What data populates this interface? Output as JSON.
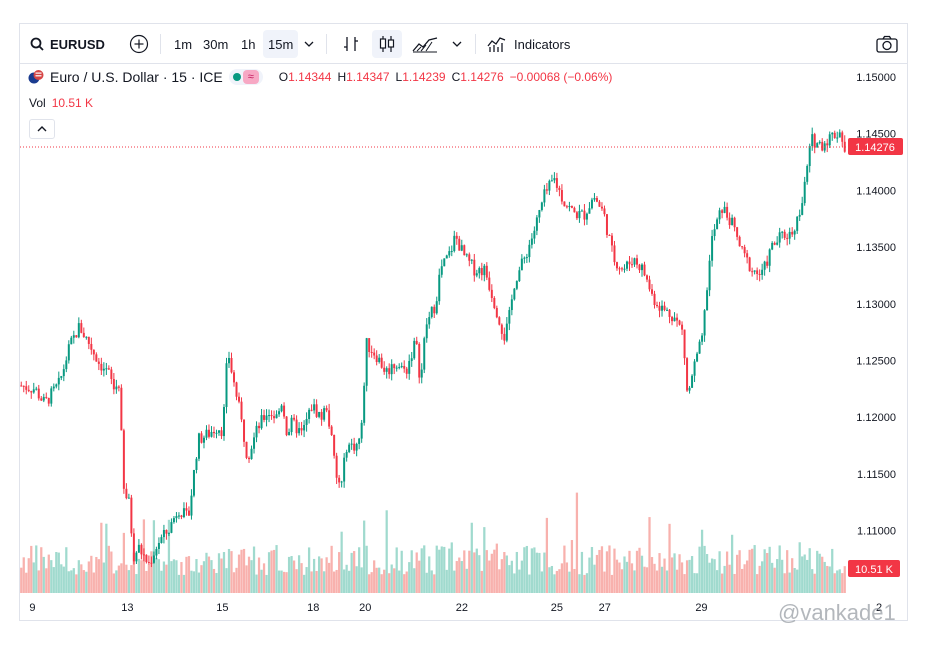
{
  "toolbar": {
    "symbol": "EURUSD",
    "intervals": [
      "1m",
      "30m",
      "1h",
      "15m"
    ],
    "active_interval": "15m",
    "indicators_label": "Indicators"
  },
  "legend": {
    "title": "Euro / U.S. Dollar · 15 · ICE",
    "open_label": "O",
    "open": "1.14344",
    "high_label": "H",
    "high": "1.14347",
    "low_label": "L",
    "low": "1.14239",
    "close_label": "C",
    "close": "1.14276",
    "change": "−0.00068 (−0.06%)",
    "vol_label": "Vol",
    "vol_value": "10.51 K"
  },
  "price_badge": "1.14276",
  "vol_badge": "10.51 K",
  "watermark": "@vankade1",
  "colors": {
    "up": "#089981",
    "down": "#f23645",
    "vol_up": "#8fd3c6",
    "vol_down": "#f7a39f"
  },
  "chart_data": {
    "type": "candlestick",
    "title": "Euro / U.S. Dollar · 15 · ICE",
    "ylim": [
      1.1045,
      1.1515
    ],
    "y_ticks": [
      "1.15000",
      "1.14500",
      "1.14000",
      "1.13500",
      "1.13000",
      "1.12500",
      "1.12000",
      "1.11500",
      "1.11000"
    ],
    "x_ticks": [
      "9",
      "13",
      "15",
      "18",
      "20",
      "22",
      "25",
      "27",
      "29",
      "2"
    ],
    "last_price": 1.14276,
    "grid": false,
    "price_path": [
      [
        0,
        1.1228
      ],
      [
        3,
        1.1225
      ],
      [
        5,
        1.1212
      ],
      [
        8,
        1.123
      ],
      [
        10,
        1.1262
      ],
      [
        12,
        1.128
      ],
      [
        14,
        1.1265
      ],
      [
        16,
        1.1248
      ],
      [
        18,
        1.1238
      ],
      [
        19,
        1.1225
      ],
      [
        20,
        1.123
      ],
      [
        21,
        1.1135
      ],
      [
        22,
        1.1125
      ],
      [
        23,
        1.1078
      ],
      [
        24,
        1.1085
      ],
      [
        26,
        1.107
      ],
      [
        28,
        1.109
      ],
      [
        30,
        1.11
      ],
      [
        32,
        1.112
      ],
      [
        34,
        1.111
      ],
      [
        36,
        1.118
      ],
      [
        38,
        1.1185
      ],
      [
        40,
        1.1192
      ],
      [
        41,
        1.1188
      ],
      [
        42,
        1.126
      ],
      [
        43,
        1.1235
      ],
      [
        44,
        1.1215
      ],
      [
        45,
        1.119
      ],
      [
        46,
        1.1165
      ],
      [
        48,
        1.119
      ],
      [
        50,
        1.1205
      ],
      [
        52,
        1.12
      ],
      [
        53,
        1.1215
      ],
      [
        54,
        1.1185
      ],
      [
        55,
        1.1195
      ],
      [
        57,
        1.1185
      ],
      [
        59,
        1.121
      ],
      [
        61,
        1.12
      ],
      [
        62,
        1.121
      ],
      [
        63,
        1.118
      ],
      [
        64,
        1.1145
      ],
      [
        65,
        1.114
      ],
      [
        66,
        1.1175
      ],
      [
        68,
        1.1175
      ],
      [
        69,
        1.1185
      ],
      [
        70,
        1.1265
      ],
      [
        72,
        1.1255
      ],
      [
        74,
        1.124
      ],
      [
        76,
        1.1248
      ],
      [
        78,
        1.124
      ],
      [
        80,
        1.1268
      ],
      [
        81,
        1.123
      ],
      [
        82,
        1.128
      ],
      [
        84,
        1.13
      ],
      [
        85,
        1.133
      ],
      [
        87,
        1.1345
      ],
      [
        88,
        1.136
      ],
      [
        90,
        1.134
      ],
      [
        92,
        1.133
      ],
      [
        94,
        1.133
      ],
      [
        96,
        1.13
      ],
      [
        98,
        1.127
      ],
      [
        99,
        1.129
      ],
      [
        100,
        1.132
      ],
      [
        102,
        1.134
      ],
      [
        104,
        1.1365
      ],
      [
        106,
        1.1395
      ],
      [
        108,
        1.141
      ],
      [
        110,
        1.139
      ],
      [
        112,
        1.138
      ],
      [
        114,
        1.1378
      ],
      [
        116,
        1.1395
      ],
      [
        118,
        1.138
      ],
      [
        120,
        1.134
      ],
      [
        122,
        1.133
      ],
      [
        124,
        1.134
      ],
      [
        126,
        1.133
      ],
      [
        128,
        1.1305
      ],
      [
        130,
        1.1295
      ],
      [
        132,
        1.129
      ],
      [
        134,
        1.1275
      ],
      [
        135,
        1.1215
      ],
      [
        136,
        1.124
      ],
      [
        138,
        1.127
      ],
      [
        139,
        1.132
      ],
      [
        140,
        1.136
      ],
      [
        142,
        1.1385
      ],
      [
        144,
        1.137
      ],
      [
        146,
        1.1345
      ],
      [
        148,
        1.133
      ],
      [
        150,
        1.1325
      ],
      [
        152,
        1.135
      ],
      [
        154,
        1.136
      ],
      [
        156,
        1.1362
      ],
      [
        158,
        1.1385
      ],
      [
        160,
        1.1445
      ],
      [
        162,
        1.144
      ],
      [
        164,
        1.1448
      ],
      [
        166,
        1.1452
      ],
      [
        167,
        1.1428
      ]
    ],
    "x_span": [
      0,
      167
    ]
  }
}
